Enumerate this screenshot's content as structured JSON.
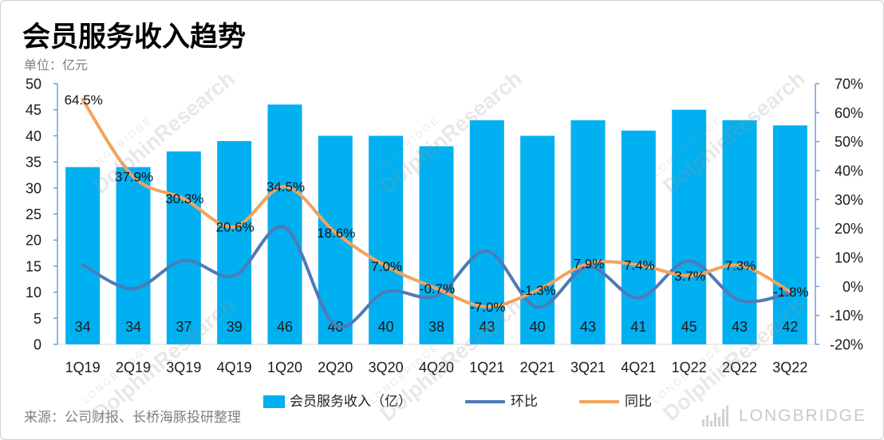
{
  "chart_data": {
    "type": "bar",
    "title": "会员服务收入趋势",
    "ylabel": "单位：亿元",
    "categories": [
      "1Q19",
      "2Q19",
      "3Q19",
      "4Q19",
      "1Q20",
      "2Q20",
      "3Q20",
      "4Q20",
      "1Q21",
      "2Q21",
      "3Q21",
      "4Q21",
      "1Q22",
      "2Q22",
      "3Q22"
    ],
    "series": [
      {
        "name": "会员服务收入（亿）",
        "type": "bar",
        "axis": "left",
        "color": "#00B0F0",
        "data_labels": true,
        "values": [
          34,
          34,
          37,
          39,
          46,
          40,
          40,
          38,
          43,
          40,
          43,
          41,
          45,
          43,
          42
        ]
      },
      {
        "name": "环比",
        "type": "line",
        "axis": "right",
        "color": "#4E7AB8",
        "data_labels": false,
        "values": [
          7.5,
          -0.8,
          9.0,
          3.7,
          20.4,
          -13.4,
          -1.8,
          -3.3,
          12.2,
          -7.2,
          6.8,
          -4.0,
          8.8,
          -4.8,
          -2.3
        ]
      },
      {
        "name": "同比",
        "type": "line",
        "axis": "right",
        "color": "#F3A35C",
        "data_labels": true,
        "values": [
          64.5,
          37.9,
          30.3,
          20.6,
          34.5,
          18.6,
          7.0,
          -0.7,
          -7.0,
          -1.3,
          7.9,
          7.4,
          3.7,
          7.3,
          -1.8
        ]
      }
    ],
    "left_axis": {
      "ylim": [
        0,
        50
      ],
      "ticks": [
        0,
        5,
        10,
        15,
        20,
        25,
        30,
        35,
        40,
        45,
        50
      ]
    },
    "right_axis": {
      "ylim": [
        -20,
        70
      ],
      "ticks": [
        -20,
        -10,
        0,
        10,
        20,
        30,
        40,
        50,
        60,
        70
      ],
      "unit": "%"
    },
    "grid": false,
    "legend": "bottom",
    "smooth_lines": true
  },
  "source": "来源：公司财报、长桥海豚投研整理",
  "watermark": {
    "brand": "LONGBRIDGE",
    "sub": "DolphinResearch"
  },
  "logo": {
    "text": "LONGBRIDGE",
    "icon": "bar-chart-icon"
  }
}
